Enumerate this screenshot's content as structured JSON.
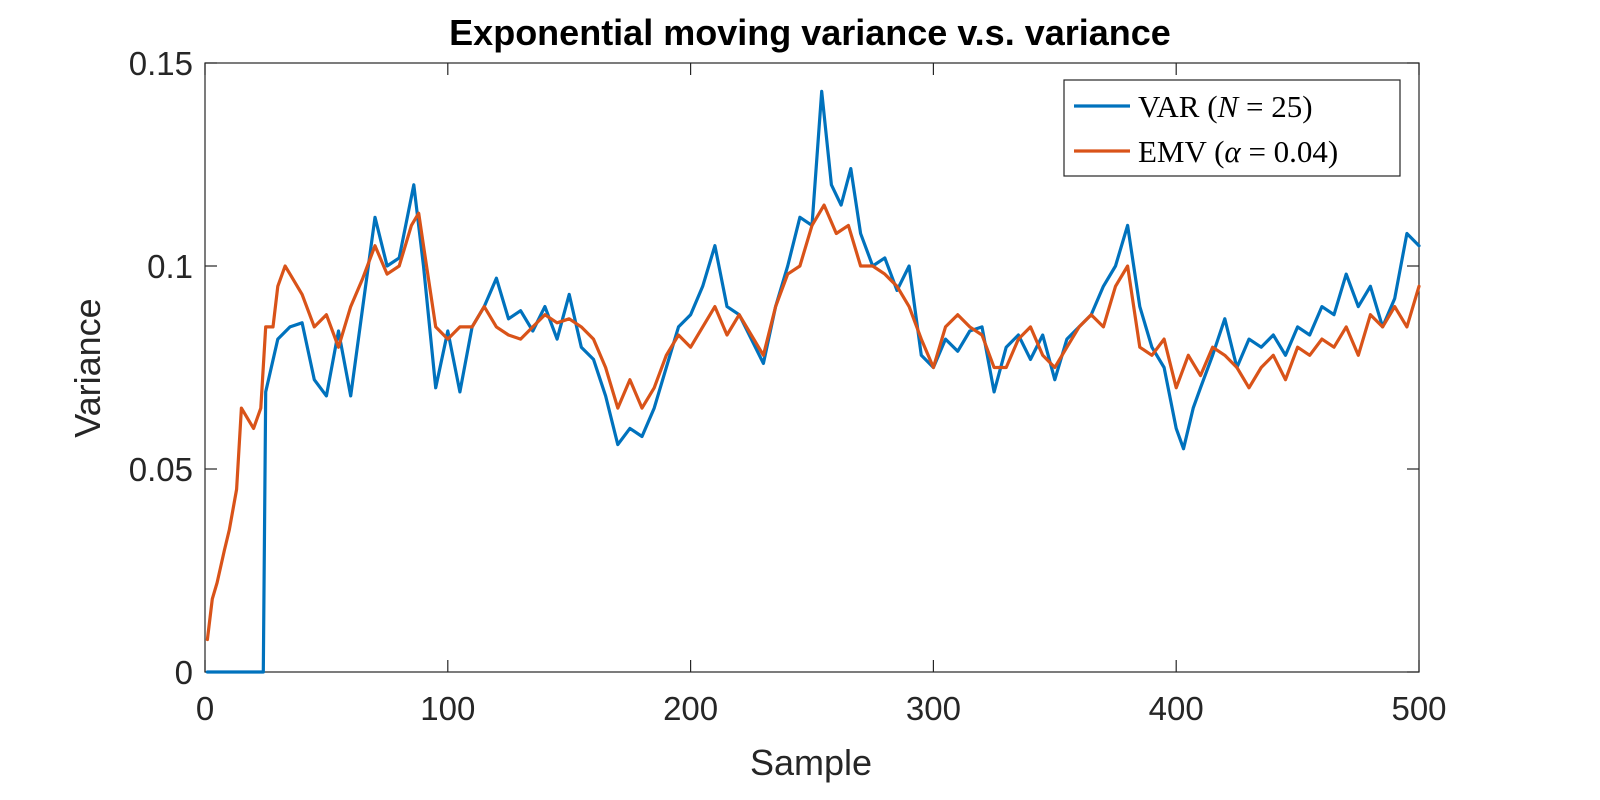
{
  "chart_data": {
    "type": "line",
    "title": "Exponential moving variance  v.s. variance",
    "xlabel": "Sample",
    "ylabel": "Variance",
    "xlim": [
      0,
      500
    ],
    "ylim": [
      0,
      0.15
    ],
    "xticks": [
      0,
      100,
      200,
      300,
      400,
      500
    ],
    "xtick_labels": [
      "0",
      "100",
      "200",
      "300",
      "400",
      "500"
    ],
    "yticks": [
      0,
      0.05,
      0.1,
      0.15
    ],
    "ytick_labels": [
      "0",
      "0.05",
      "0.1",
      "0.15"
    ],
    "grid": false,
    "legend_position": "top-right",
    "series": [
      {
        "name": "VAR (N = 25)",
        "legend_parts": [
          "VAR (",
          "N",
          " = 25)"
        ],
        "color": "#0072BD",
        "x": [
          1,
          23,
          24,
          25,
          30,
          35,
          40,
          45,
          50,
          55,
          60,
          65,
          70,
          75,
          80,
          86,
          90,
          95,
          100,
          105,
          110,
          115,
          120,
          125,
          130,
          135,
          140,
          145,
          150,
          155,
          160,
          165,
          170,
          175,
          180,
          185,
          190,
          195,
          200,
          205,
          210,
          215,
          220,
          225,
          230,
          235,
          240,
          245,
          250,
          254,
          258,
          262,
          266,
          270,
          275,
          280,
          285,
          290,
          295,
          300,
          305,
          310,
          315,
          320,
          325,
          330,
          335,
          340,
          345,
          350,
          355,
          360,
          365,
          370,
          375,
          380,
          385,
          390,
          395,
          400,
          403,
          407,
          410,
          415,
          420,
          425,
          430,
          435,
          440,
          445,
          450,
          455,
          460,
          465,
          470,
          475,
          480,
          485,
          490,
          495,
          500
        ],
        "values": [
          0,
          0,
          0,
          0.069,
          0.082,
          0.085,
          0.086,
          0.072,
          0.068,
          0.084,
          0.068,
          0.09,
          0.112,
          0.1,
          0.102,
          0.12,
          0.1,
          0.07,
          0.084,
          0.069,
          0.085,
          0.09,
          0.097,
          0.087,
          0.089,
          0.084,
          0.09,
          0.082,
          0.093,
          0.08,
          0.077,
          0.068,
          0.056,
          0.06,
          0.058,
          0.065,
          0.075,
          0.085,
          0.088,
          0.095,
          0.105,
          0.09,
          0.088,
          0.082,
          0.076,
          0.09,
          0.1,
          0.112,
          0.11,
          0.143,
          0.12,
          0.115,
          0.124,
          0.108,
          0.1,
          0.102,
          0.094,
          0.1,
          0.078,
          0.075,
          0.082,
          0.079,
          0.084,
          0.085,
          0.069,
          0.08,
          0.083,
          0.077,
          0.083,
          0.072,
          0.082,
          0.085,
          0.088,
          0.095,
          0.1,
          0.11,
          0.09,
          0.08,
          0.075,
          0.06,
          0.055,
          0.065,
          0.07,
          0.078,
          0.087,
          0.075,
          0.082,
          0.08,
          0.083,
          0.078,
          0.085,
          0.083,
          0.09,
          0.088,
          0.098,
          0.09,
          0.095,
          0.085,
          0.092,
          0.108,
          0.105
        ]
      },
      {
        "name": "EMV (α = 0.04)",
        "legend_parts": [
          "EMV (",
          "α",
          " = 0.04)"
        ],
        "color": "#D95319",
        "x": [
          1,
          3,
          5,
          8,
          10,
          13,
          15,
          18,
          20,
          23,
          25,
          28,
          30,
          33,
          35,
          40,
          45,
          50,
          55,
          60,
          65,
          70,
          75,
          80,
          85,
          88,
          90,
          95,
          100,
          105,
          110,
          115,
          120,
          125,
          130,
          135,
          140,
          145,
          150,
          155,
          160,
          165,
          170,
          175,
          180,
          185,
          190,
          195,
          200,
          205,
          210,
          215,
          220,
          225,
          230,
          235,
          240,
          245,
          250,
          255,
          260,
          265,
          270,
          275,
          280,
          285,
          290,
          295,
          300,
          305,
          310,
          315,
          320,
          325,
          330,
          335,
          340,
          345,
          350,
          355,
          360,
          365,
          370,
          375,
          380,
          385,
          390,
          395,
          400,
          405,
          410,
          415,
          420,
          425,
          430,
          435,
          440,
          445,
          450,
          455,
          460,
          465,
          470,
          475,
          480,
          485,
          490,
          495,
          500
        ],
        "values": [
          0.008,
          0.018,
          0.022,
          0.03,
          0.035,
          0.045,
          0.065,
          0.062,
          0.06,
          0.065,
          0.085,
          0.085,
          0.095,
          0.1,
          0.098,
          0.093,
          0.085,
          0.088,
          0.08,
          0.09,
          0.097,
          0.105,
          0.098,
          0.1,
          0.11,
          0.113,
          0.105,
          0.085,
          0.082,
          0.085,
          0.085,
          0.09,
          0.085,
          0.083,
          0.082,
          0.085,
          0.088,
          0.086,
          0.087,
          0.085,
          0.082,
          0.075,
          0.065,
          0.072,
          0.065,
          0.07,
          0.078,
          0.083,
          0.08,
          0.085,
          0.09,
          0.083,
          0.088,
          0.083,
          0.078,
          0.09,
          0.098,
          0.1,
          0.11,
          0.115,
          0.108,
          0.11,
          0.1,
          0.1,
          0.098,
          0.095,
          0.09,
          0.082,
          0.075,
          0.085,
          0.088,
          0.085,
          0.083,
          0.075,
          0.075,
          0.082,
          0.085,
          0.078,
          0.075,
          0.08,
          0.085,
          0.088,
          0.085,
          0.095,
          0.1,
          0.08,
          0.078,
          0.082,
          0.07,
          0.078,
          0.073,
          0.08,
          0.078,
          0.075,
          0.07,
          0.075,
          0.078,
          0.072,
          0.08,
          0.078,
          0.082,
          0.08,
          0.085,
          0.078,
          0.088,
          0.085,
          0.09,
          0.085,
          0.095
        ]
      }
    ]
  }
}
